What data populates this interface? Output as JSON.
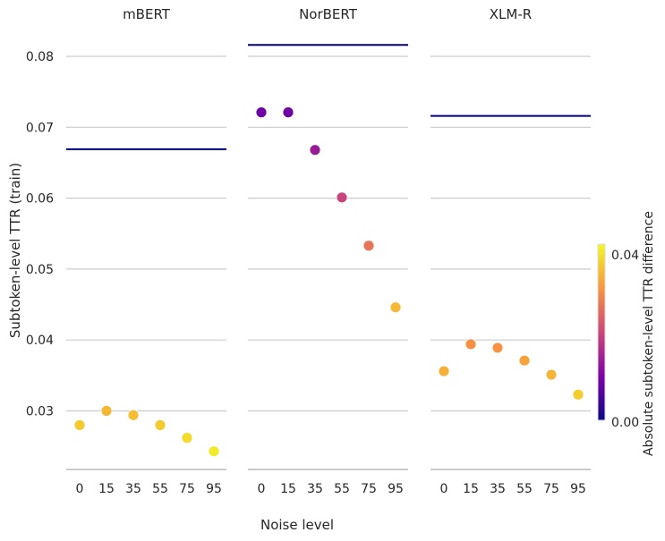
{
  "chart_data": {
    "type": "scatter",
    "ylabel": "Subtoken-level TTR (train)",
    "xlabel": "Noise level",
    "categories": [
      "0",
      "15",
      "35",
      "55",
      "75",
      "95"
    ],
    "yticks": [
      "0.03",
      "0.04",
      "0.05",
      "0.06",
      "0.07",
      "0.08"
    ],
    "ylim": [
      0.0215,
      0.0835
    ],
    "grid": true,
    "colorbar": {
      "label": "Absolute subtoken-level TTR difference",
      "ticks": [
        "0.00",
        "0.04"
      ],
      "range": [
        0,
        0.044
      ],
      "colormap": "plasma",
      "position": "right"
    },
    "panels": [
      {
        "title": "mBERT",
        "reference": 0.0669,
        "values": [
          0.028,
          0.03,
          0.0294,
          0.028,
          0.0262,
          0.0243
        ],
        "diff": [
          0.0389,
          0.0369,
          0.0375,
          0.0389,
          0.0407,
          0.0426
        ]
      },
      {
        "title": "NorBERT",
        "reference": 0.0816,
        "values": [
          0.0721,
          0.0721,
          0.0668,
          0.0601,
          0.0533,
          0.0446
        ],
        "diff": [
          0.0095,
          0.0095,
          0.0148,
          0.0215,
          0.0283,
          0.037
        ]
      },
      {
        "title": "XLM-R",
        "reference": 0.0716,
        "values": [
          0.0356,
          0.0394,
          0.0389,
          0.0371,
          0.0351,
          0.0323
        ],
        "diff": [
          0.036,
          0.0322,
          0.0327,
          0.0345,
          0.0365,
          0.0393
        ]
      }
    ],
    "colors": {
      "reference_line": "#000080",
      "grid": "#cccccc",
      "axis": "#bbbbbb",
      "text": "#262626"
    }
  }
}
